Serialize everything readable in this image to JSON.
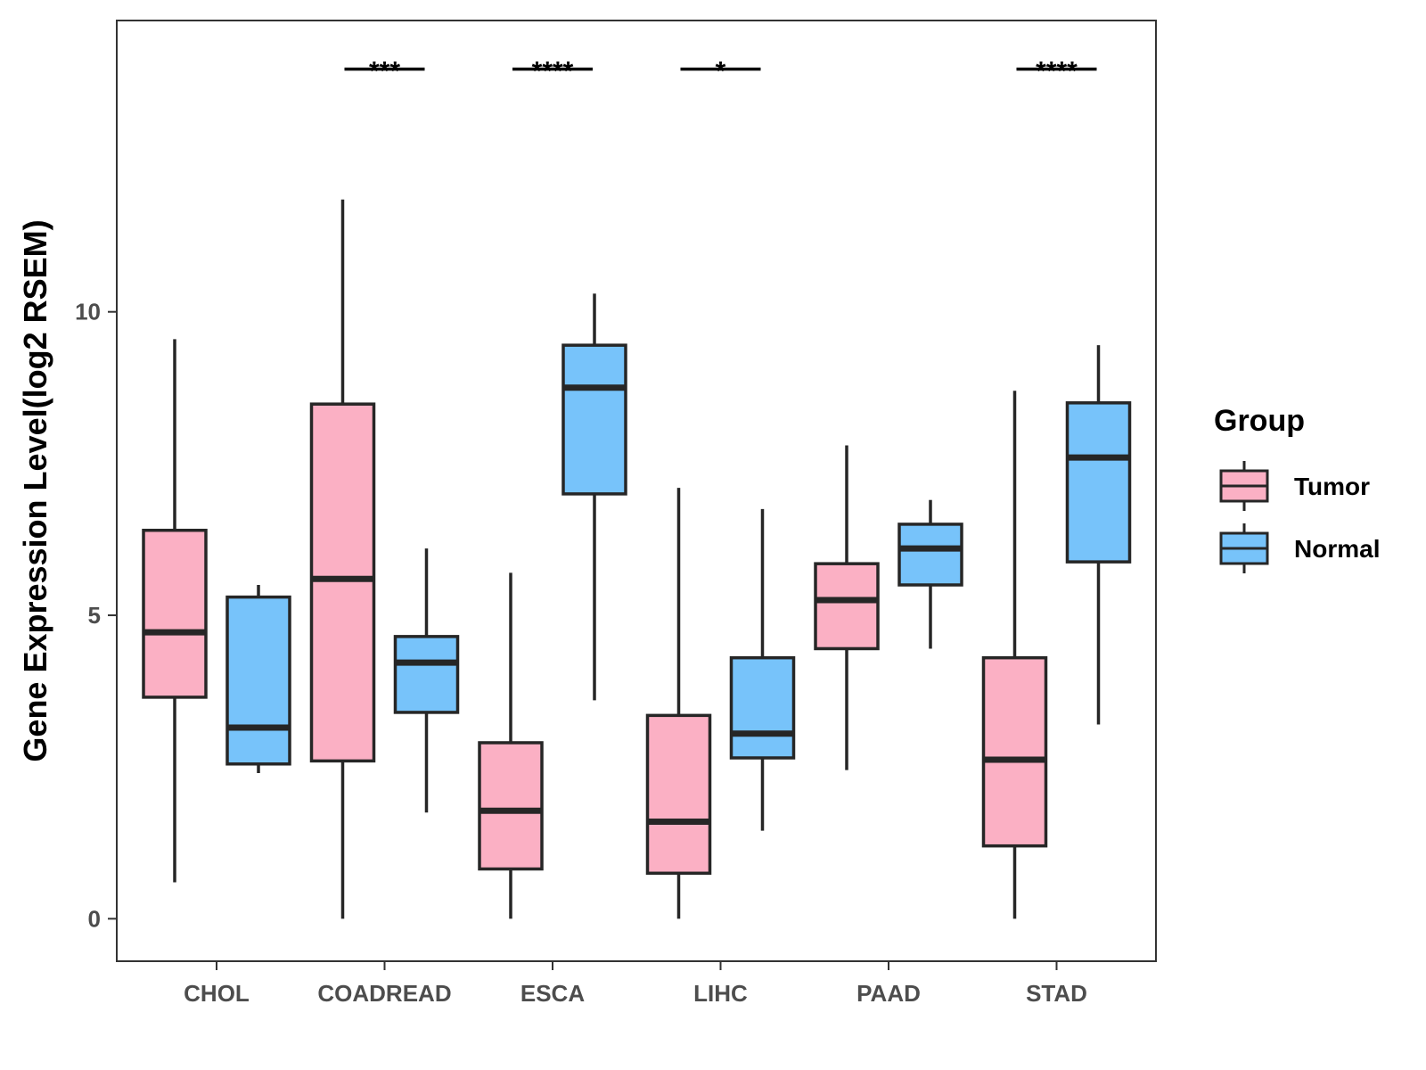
{
  "chart_data": {
    "type": "box",
    "title": "",
    "xlabel": "",
    "ylabel": "Gene Expression Level(log2 RSEM)",
    "ylim": [
      -0.7,
      14.8
    ],
    "yticks": [
      0,
      5,
      10
    ],
    "ytick_labels": [
      "0",
      "5",
      "10"
    ],
    "grid": false,
    "categories": [
      "CHOL",
      "COADREAD",
      "ESCA",
      "LIHC",
      "PAAD",
      "STAD"
    ],
    "legend": {
      "title": "Group",
      "position": "right",
      "entries": [
        {
          "label": "Tumor",
          "color": "#FBB0C4"
        },
        {
          "label": "Normal",
          "color": "#77C3FA"
        }
      ]
    },
    "series": [
      {
        "name": "Tumor",
        "color": "#FBB0C4",
        "boxes": [
          {
            "min": 0.6,
            "q1": 3.65,
            "median": 4.72,
            "q3": 6.4,
            "max": 9.55
          },
          {
            "min": 0.0,
            "q1": 2.6,
            "median": 5.6,
            "q3": 8.48,
            "max": 11.85
          },
          {
            "min": 0.0,
            "q1": 0.82,
            "median": 1.78,
            "q3": 2.9,
            "max": 5.7
          },
          {
            "min": 0.0,
            "q1": 0.75,
            "median": 1.6,
            "q3": 3.35,
            "max": 7.1
          },
          {
            "min": 2.45,
            "q1": 4.45,
            "median": 5.25,
            "q3": 5.85,
            "max": 7.8
          },
          {
            "min": 0.0,
            "q1": 1.2,
            "median": 2.62,
            "q3": 4.3,
            "max": 8.7
          }
        ]
      },
      {
        "name": "Normal",
        "color": "#77C3FA",
        "boxes": [
          {
            "min": 2.4,
            "q1": 2.55,
            "median": 3.15,
            "q3": 5.3,
            "max": 5.5
          },
          {
            "min": 1.75,
            "q1": 3.4,
            "median": 4.22,
            "q3": 4.65,
            "max": 6.1
          },
          {
            "min": 3.6,
            "q1": 7.0,
            "median": 8.75,
            "q3": 9.45,
            "max": 10.3
          },
          {
            "min": 1.45,
            "q1": 2.65,
            "median": 3.05,
            "q3": 4.3,
            "max": 6.75
          },
          {
            "min": 4.45,
            "q1": 5.5,
            "median": 6.1,
            "q3": 6.5,
            "max": 6.9
          },
          {
            "min": 3.2,
            "q1": 5.88,
            "median": 7.6,
            "q3": 8.5,
            "max": 9.45
          }
        ]
      }
    ],
    "annotations": [
      {
        "category": "COADREAD",
        "label": "***"
      },
      {
        "category": "ESCA",
        "label": "****"
      },
      {
        "category": "LIHC",
        "label": "*"
      },
      {
        "category": "STAD",
        "label": "****"
      }
    ],
    "significance_y": 14.0
  }
}
